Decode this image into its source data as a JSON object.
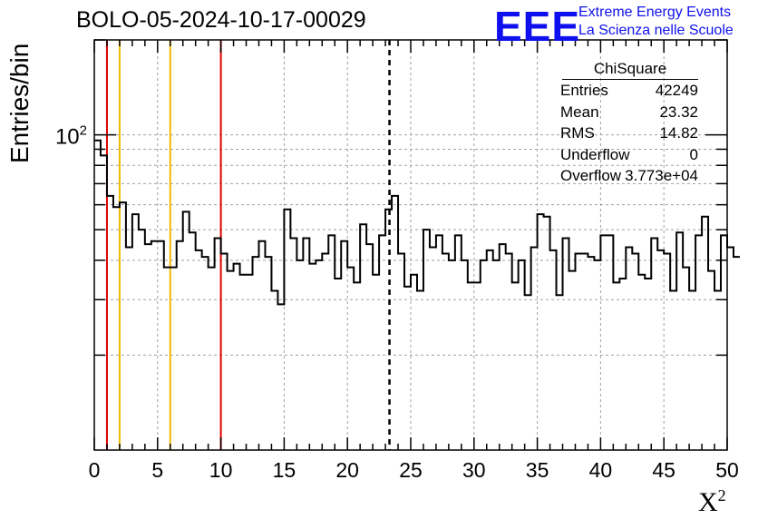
{
  "title": "BOLO-05-2024-10-17-00029",
  "logo": {
    "mark": "EEE",
    "line1": "Extreme Energy Events",
    "line2": "La Scienza nelle Scuole"
  },
  "chart_data": {
    "type": "histogram",
    "xlabel": "X",
    "xlabel_sup": "2",
    "ylabel": "Entries/bin",
    "xlim": [
      0,
      50
    ],
    "ylim": [
      10,
      200
    ],
    "ylog": true,
    "bin_width": 0.5,
    "xticks": [
      0,
      5,
      10,
      15,
      20,
      25,
      30,
      35,
      40,
      45,
      50
    ],
    "ytick_label": "10",
    "ytick_label_sup": "2",
    "ytick_value": 100,
    "grid": true,
    "values": [
      96,
      86,
      64,
      59,
      61,
      44,
      56,
      50,
      45,
      46,
      46,
      38,
      38,
      46,
      57,
      49,
      43,
      41,
      38,
      47,
      42,
      37,
      39,
      36,
      36,
      41,
      46,
      41,
      32,
      29,
      58,
      47,
      40,
      47,
      39,
      40,
      42,
      48,
      35,
      46,
      38,
      34,
      52,
      45,
      36,
      48,
      58,
      64,
      42,
      33,
      36,
      32,
      50,
      44,
      48,
      42,
      40,
      48,
      40,
      34,
      34,
      40,
      43,
      40,
      45,
      42,
      34,
      40,
      31,
      44,
      56,
      55,
      43,
      31,
      47,
      37,
      42,
      42,
      41,
      40,
      48,
      48,
      34,
      35,
      44,
      42,
      36,
      35,
      47,
      43,
      42,
      32,
      49,
      38,
      32,
      48,
      55,
      37,
      32,
      48,
      44,
      41
    ],
    "mean_line": 23.32,
    "vlines": [
      {
        "x": 1,
        "color": "#e00000"
      },
      {
        "x": 2,
        "color": "#f0b800"
      },
      {
        "x": 6,
        "color": "#f0b800"
      },
      {
        "x": 10,
        "color": "#e00000"
      }
    ]
  },
  "stats": {
    "title": "ChiSquare",
    "rows": [
      {
        "label": "Entries",
        "value": "42249"
      },
      {
        "label": "Mean",
        "value": "23.32"
      },
      {
        "label": "RMS",
        "value": "14.82"
      },
      {
        "label": "Underflow",
        "value": "0"
      },
      {
        "label": "Overflow",
        "value": "3.773e+04"
      }
    ]
  }
}
